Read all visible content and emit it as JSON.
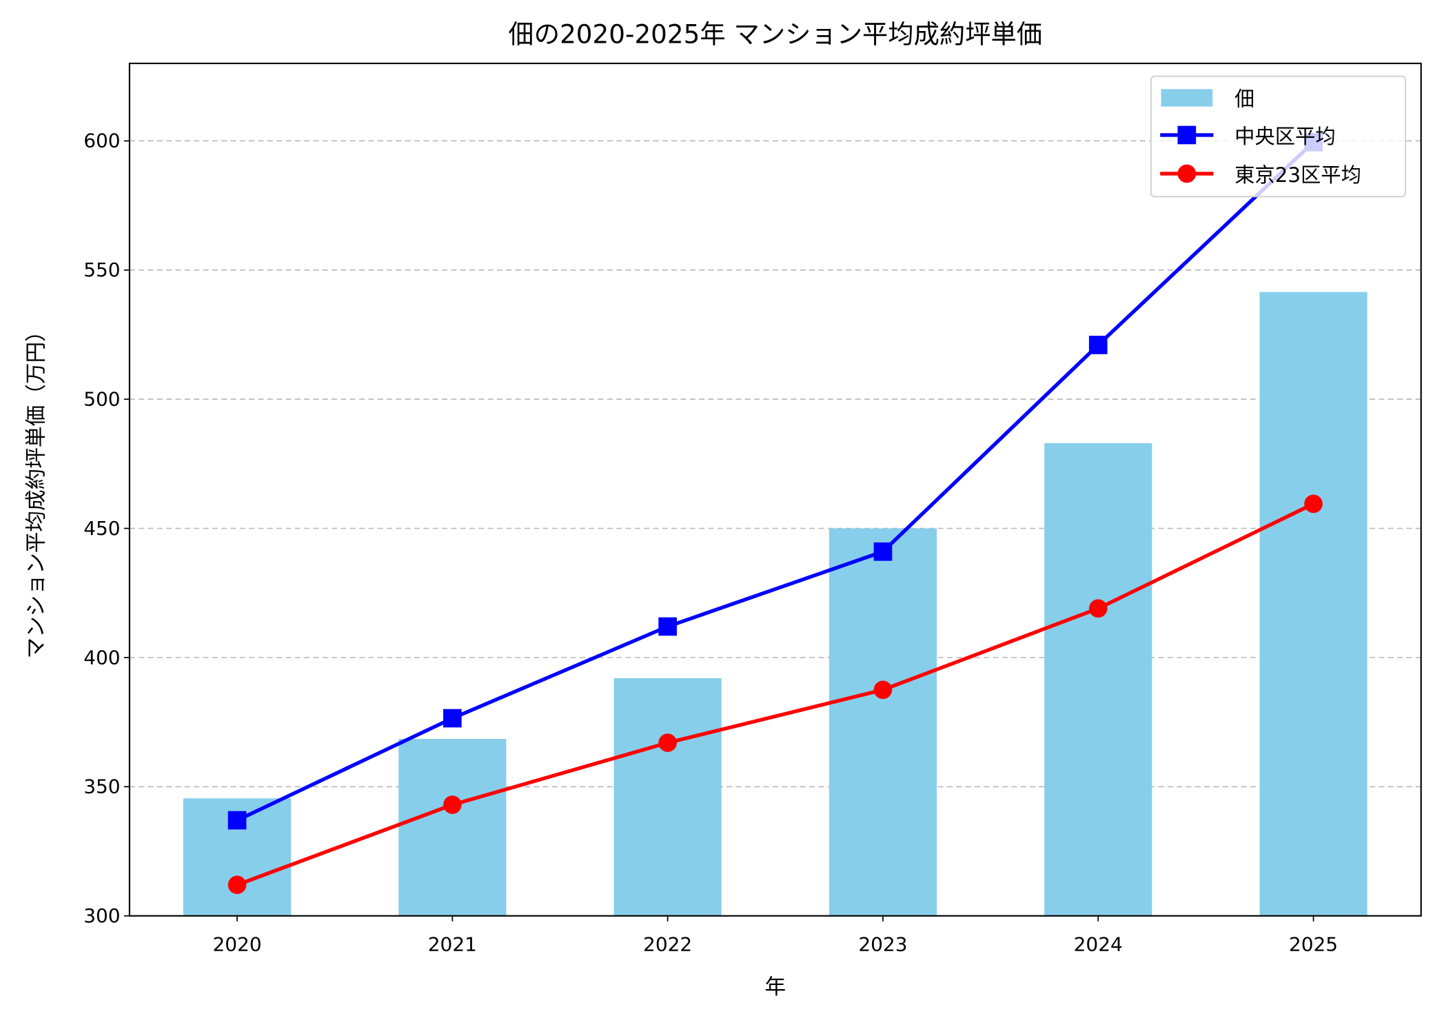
{
  "chart_data": {
    "type": "bar+line",
    "title": "佃の2020-2025年 マンション平均成約坪単価",
    "xlabel": "年",
    "ylabel": "マンション平均成約坪単価（万円）",
    "categories": [
      "2020",
      "2021",
      "2022",
      "2023",
      "2024",
      "2025"
    ],
    "ylim": [
      300,
      630
    ],
    "yticks": [
      300,
      350,
      400,
      450,
      500,
      550,
      600
    ],
    "grid": "y-dashed",
    "legend_position": "top-right",
    "series": [
      {
        "name": "佃",
        "kind": "bar",
        "color": "#87ceeb",
        "values": [
          345.5,
          368.5,
          392,
          450,
          483,
          541.5
        ]
      },
      {
        "name": "中央区平均",
        "kind": "line",
        "marker": "square",
        "color": "#0000ff",
        "values": [
          337,
          376.5,
          412,
          441,
          521,
          599.5
        ]
      },
      {
        "name": "東京23区平均",
        "kind": "line",
        "marker": "circle",
        "color": "#ff0000",
        "values": [
          312,
          343,
          367,
          387.5,
          419,
          459.5
        ]
      }
    ]
  }
}
